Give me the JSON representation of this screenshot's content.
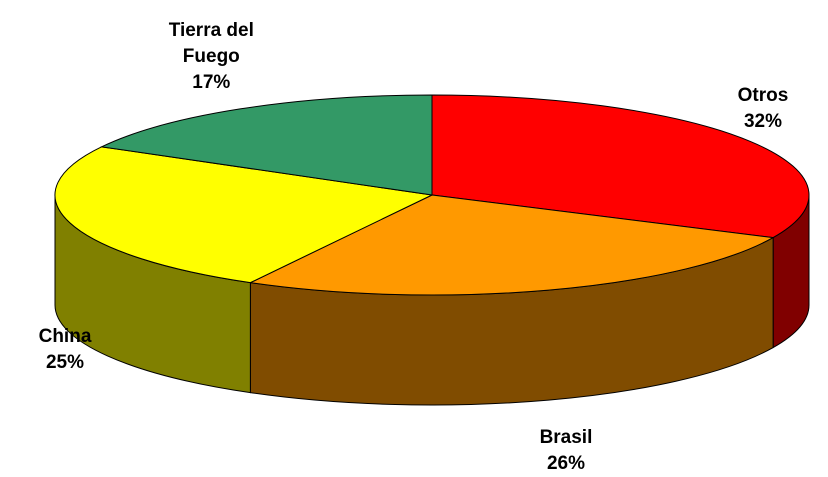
{
  "chart_data": {
    "type": "pie3d",
    "categories": [
      "Otros",
      "Brasil",
      "China",
      "Tierra del Fuego"
    ],
    "values": [
      32,
      26,
      25,
      17
    ],
    "value_labels": [
      "32%",
      "26%",
      "25%",
      "17%"
    ],
    "colors": [
      "#ff0000",
      "#ff9900",
      "#ffff00",
      "#339966"
    ],
    "side_colors": [
      "#800000",
      "#804c00",
      "#808000",
      "#1a4d33"
    ]
  }
}
